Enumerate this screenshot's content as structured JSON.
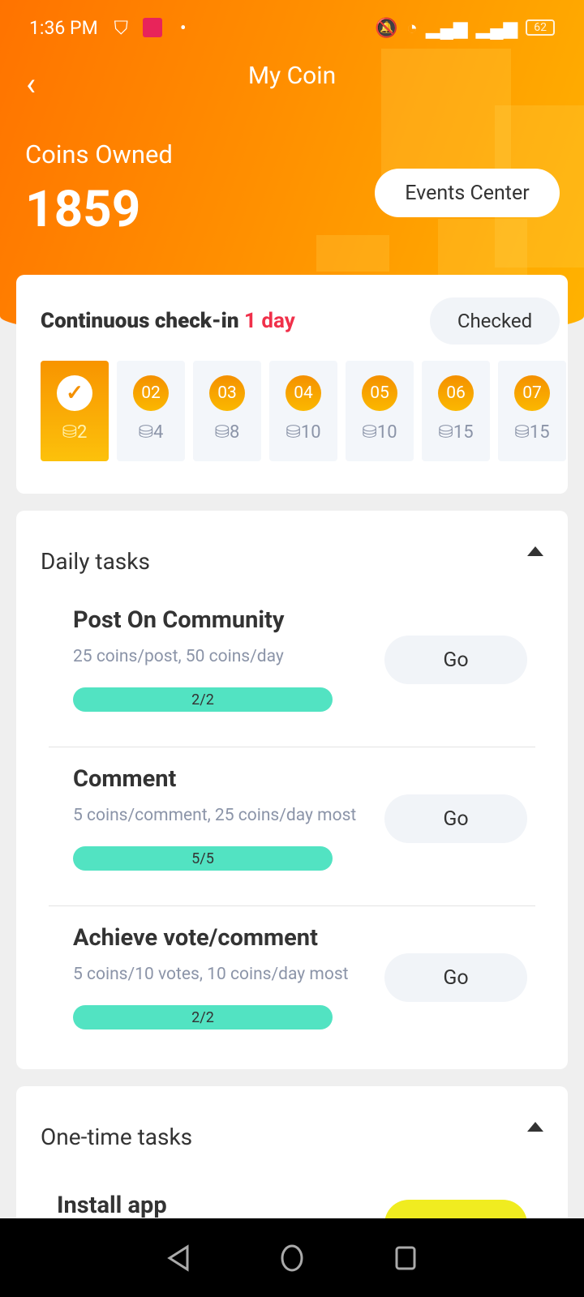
{
  "status_bar": {
    "time": "1:36 PM",
    "battery": "62"
  },
  "header": {
    "title": "My Coin",
    "coins_label": "Coins Owned",
    "coins_value": "1859",
    "events_button": "Events Center"
  },
  "checkin": {
    "title_prefix": "Continuous check-in ",
    "streak": "1 day",
    "status_button": "Checked",
    "days": [
      {
        "label": "✓",
        "coins": "2",
        "checked": true
      },
      {
        "label": "02",
        "coins": "4"
      },
      {
        "label": "03",
        "coins": "8"
      },
      {
        "label": "04",
        "coins": "10"
      },
      {
        "label": "05",
        "coins": "10"
      },
      {
        "label": "06",
        "coins": "15"
      },
      {
        "label": "07",
        "coins": "15"
      }
    ]
  },
  "daily": {
    "title": "Daily tasks",
    "tasks": [
      {
        "name": "Post On Community",
        "desc": "25 coins/post, 50 coins/day",
        "progress": "2/2",
        "button": "Go"
      },
      {
        "name": "Comment",
        "desc": "5 coins/comment, 25 coins/day most",
        "progress": "5/5",
        "button": "Go"
      },
      {
        "name": "Achieve vote/comment",
        "desc": "5 coins/10 votes, 10 coins/day most",
        "progress": "2/2",
        "button": "Go"
      }
    ]
  },
  "onetime": {
    "title": "One-time tasks",
    "tasks": [
      {
        "name": "Install app"
      }
    ]
  },
  "colors": {
    "accent": "#ff8a00",
    "streak": "#f0304a",
    "progress": "#52e3c2",
    "install_button": "#f0ec20"
  }
}
